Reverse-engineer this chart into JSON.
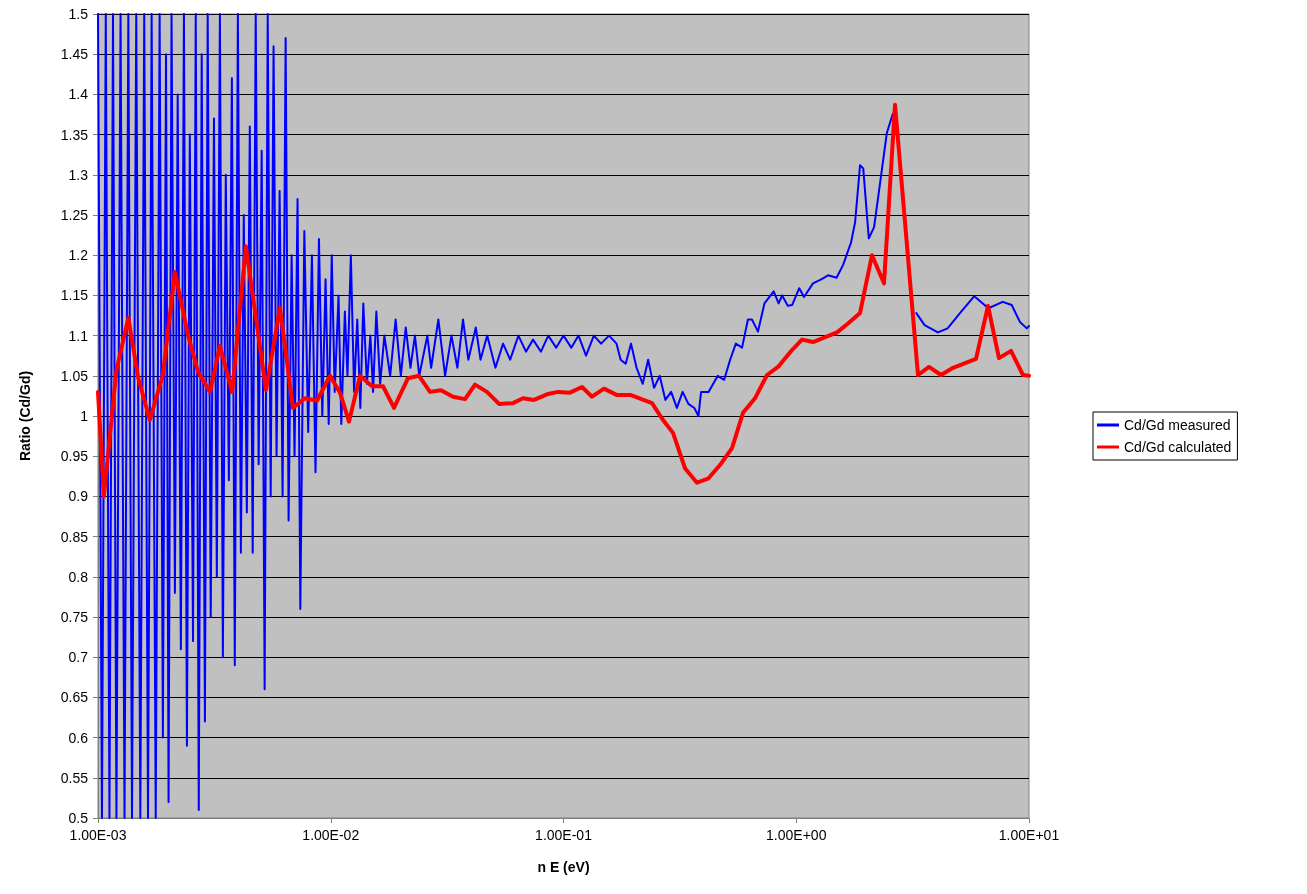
{
  "chart_data": {
    "type": "line",
    "xlabel": "n E (eV)",
    "ylabel": "Ratio (Cd/Gd)",
    "log": "x",
    "xlim": [
      0.001,
      10
    ],
    "xticks": [
      {
        "value": 0.001,
        "label": "1.00E-03"
      },
      {
        "value": 0.01,
        "label": "1.00E-02"
      },
      {
        "value": 0.1,
        "label": "1.00E-01"
      },
      {
        "value": 1,
        "label": "1.00E+00"
      },
      {
        "value": 10,
        "label": "1.00E+01"
      }
    ],
    "ylim": [
      0.5,
      1.5
    ],
    "yticks": [
      0.5,
      0.55,
      0.6,
      0.65,
      0.7,
      0.75,
      0.8,
      0.85,
      0.9,
      0.95,
      1,
      1.05,
      1.1,
      1.15,
      1.2,
      1.25,
      1.3,
      1.35,
      1.4,
      1.45,
      1.5
    ],
    "grid": "y",
    "legend": "right",
    "marker": "none",
    "line_style": "solid",
    "series": [
      {
        "name": "Cd/Gd measured",
        "color": "#0000ff",
        "x": [
          0.001,
          0.00104,
          0.00108,
          0.00112,
          0.00116,
          0.0012,
          0.00125,
          0.0013,
          0.00135,
          0.0014,
          0.00146,
          0.00152,
          0.00158,
          0.00164,
          0.0017,
          0.00177,
          0.00184,
          0.0019,
          0.00196,
          0.00201,
          0.00207,
          0.00214,
          0.0022,
          0.00227,
          0.00234,
          0.00241,
          0.00248,
          0.00256,
          0.00263,
          0.00271,
          0.00279,
          0.00288,
          0.00296,
          0.00305,
          0.00315,
          0.00324,
          0.00334,
          0.00344,
          0.00354,
          0.00365,
          0.00376,
          0.00387,
          0.00399,
          0.00411,
          0.00423,
          0.00436,
          0.00449,
          0.00462,
          0.00476,
          0.0049,
          0.00505,
          0.0052,
          0.00536,
          0.00552,
          0.00568,
          0.00585,
          0.00603,
          0.00621,
          0.0064,
          0.00659,
          0.00679,
          0.00699,
          0.0072,
          0.0074,
          0.0077,
          0.008,
          0.0083,
          0.0086,
          0.0089,
          0.0092,
          0.0095,
          0.0098,
          0.0101,
          0.0104,
          0.0108,
          0.0111,
          0.0115,
          0.0118,
          0.0122,
          0.0126,
          0.013,
          0.0134,
          0.0138,
          0.0143,
          0.0148,
          0.0152,
          0.0157,
          0.0163,
          0.017,
          0.018,
          0.019,
          0.02,
          0.021,
          0.022,
          0.023,
          0.024,
          0.026,
          0.027,
          0.029,
          0.031,
          0.033,
          0.035,
          0.037,
          0.039,
          0.042,
          0.044,
          0.047,
          0.051,
          0.055,
          0.059,
          0.064,
          0.069,
          0.074,
          0.08,
          0.086,
          0.093,
          0.1,
          0.108,
          0.116,
          0.125,
          0.135,
          0.145,
          0.157,
          0.169,
          0.176,
          0.185,
          0.195,
          0.206,
          0.219,
          0.231,
          0.245,
          0.259,
          0.274,
          0.29,
          0.307,
          0.325,
          0.344,
          0.365,
          0.38,
          0.39,
          0.42,
          0.46,
          0.49,
          0.52,
          0.55,
          0.585,
          0.62,
          0.645,
          0.685,
          0.73,
          0.8,
          0.84,
          0.87,
          0.92,
          0.96,
          1.03,
          1.08,
          1.18,
          1.28,
          1.37,
          1.49,
          1.59,
          1.72,
          1.79,
          1.88,
          1.94,
          2.05,
          2.16,
          2.28,
          2.45,
          2.6,
          2.71,
          2.88,
          3.06,
          3.28,
          3.56,
          4.06,
          4.47,
          5.05,
          5.82,
          6.69,
          7.71,
          8.43,
          9.14,
          9.79,
          10
        ],
        "values": [
          1.5,
          0.5,
          1.5,
          0.5,
          1.5,
          0.5,
          1.5,
          0.5,
          1.5,
          0.5,
          1.5,
          0.5,
          1.5,
          0.5,
          1.5,
          0.5,
          1.5,
          0.6,
          1.45,
          0.52,
          1.5,
          0.78,
          1.4,
          0.71,
          1.5,
          0.59,
          1.35,
          0.72,
          1.5,
          0.51,
          1.45,
          0.62,
          1.5,
          0.75,
          1.37,
          0.8,
          1.5,
          0.7,
          1.3,
          0.92,
          1.42,
          0.69,
          1.5,
          0.83,
          1.25,
          0.88,
          1.36,
          0.83,
          1.5,
          0.94,
          1.33,
          0.66,
          1.5,
          0.9,
          1.46,
          0.95,
          1.28,
          0.9,
          1.47,
          0.87,
          1.2,
          0.95,
          1.27,
          0.76,
          1.23,
          0.98,
          1.2,
          0.93,
          1.22,
          1.0,
          1.17,
          0.99,
          1.2,
          1.03,
          1.15,
          0.99,
          1.13,
          1.05,
          1.2,
          1.03,
          1.12,
          1.01,
          1.14,
          1.04,
          1.1,
          1.03,
          1.13,
          1.04,
          1.1,
          1.05,
          1.12,
          1.05,
          1.11,
          1.06,
          1.1,
          1.05,
          1.1,
          1.06,
          1.12,
          1.05,
          1.1,
          1.06,
          1.12,
          1.07,
          1.11,
          1.07,
          1.1,
          1.06,
          1.09,
          1.07,
          1.1,
          1.08,
          1.095,
          1.08,
          1.1,
          1.085,
          1.1,
          1.085,
          1.1,
          1.075,
          1.1,
          1.09,
          1.1,
          1.09,
          1.07,
          1.065,
          1.09,
          1.06,
          1.04,
          1.07,
          1.035,
          1.05,
          1.02,
          1.03,
          1.01,
          1.03,
          1.015,
          1.01,
          1.0,
          1.03,
          1.03,
          1.05,
          1.045,
          1.07,
          1.09,
          1.085,
          1.12,
          1.12,
          1.105,
          1.14,
          1.155,
          1.14,
          1.15,
          1.137,
          1.138,
          1.159,
          1.148,
          1.165,
          1.17,
          1.175,
          1.172,
          1.188,
          1.216,
          1.241,
          1.312,
          1.308,
          1.221,
          1.235,
          1.285,
          1.352,
          1.376,
          null,
          null,
          null,
          1.128,
          1.113,
          1.104,
          1.109,
          1.128,
          1.149,
          1.134,
          1.142,
          1.138,
          1.117,
          1.109,
          1.112
        ]
      },
      {
        "name": "Cd/Gd calculated",
        "color": "#ff0000",
        "x": [
          0.001,
          0.00106,
          0.0012,
          0.00135,
          0.00149,
          0.00167,
          0.0019,
          0.00214,
          0.00244,
          0.00269,
          0.00303,
          0.00334,
          0.00377,
          0.00432,
          0.00527,
          0.00605,
          0.00688,
          0.00775,
          0.00873,
          0.00993,
          0.01096,
          0.01198,
          0.01336,
          0.01504,
          0.01677,
          0.0187,
          0.02147,
          0.02394,
          0.0267,
          0.02977,
          0.03352,
          0.03774,
          0.04167,
          0.0469,
          0.05284,
          0.06067,
          0.06699,
          0.07469,
          0.0849,
          0.09471,
          0.1066,
          0.1201,
          0.1326,
          0.1493,
          0.1698,
          0.195,
          0.24,
          0.2676,
          0.2955,
          0.3327,
          0.3746,
          0.4178,
          0.4704,
          0.5297,
          0.5905,
          0.6649,
          0.7489,
          0.835,
          0.9588,
          1.059,
          1.18,
          1.497,
          1.669,
          1.879,
          2.116,
          2.382,
          2.657,
          3.335,
          3.719,
          4.188,
          4.716,
          5.92,
          6.666,
          7.43,
          8.37,
          9.42,
          10
        ],
        "values": [
          1.03,
          0.9,
          1.057,
          1.122,
          1.047,
          0.995,
          1.051,
          1.179,
          1.1,
          1.055,
          1.03,
          1.087,
          1.03,
          1.211,
          1.032,
          1.135,
          1.01,
          1.022,
          1.019,
          1.05,
          1.029,
          0.993,
          1.05,
          1.037,
          1.037,
          1.01,
          1.047,
          1.05,
          1.03,
          1.032,
          1.024,
          1.021,
          1.039,
          1.03,
          1.015,
          1.016,
          1.022,
          1.02,
          1.027,
          1.03,
          1.029,
          1.036,
          1.024,
          1.034,
          1.026,
          1.026,
          1.016,
          0.995,
          0.979,
          0.935,
          0.917,
          0.922,
          0.939,
          0.96,
          1.004,
          1.022,
          1.051,
          1.061,
          1.082,
          1.095,
          1.092,
          1.104,
          1.115,
          1.128,
          1.2,
          1.165,
          1.387,
          1.051,
          1.061,
          1.051,
          1.06,
          1.071,
          1.137,
          1.072,
          1.081,
          1.051,
          1.05
        ]
      }
    ]
  }
}
